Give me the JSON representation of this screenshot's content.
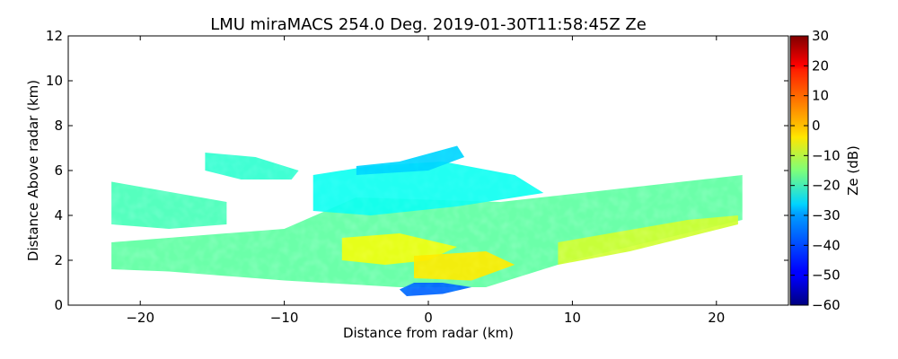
{
  "chart_data": {
    "type": "heatmap",
    "title": "LMU miraMACS 254.0 Deg. 2019-01-30T11:58:45Z  Ze",
    "xlabel": "Distance from radar (km)",
    "ylabel": "Distance Above radar  (km)",
    "xlim": [
      -25,
      25
    ],
    "ylim": [
      0,
      12
    ],
    "x_ticks": [
      -20,
      -10,
      0,
      10,
      20
    ],
    "y_ticks": [
      0,
      2,
      4,
      6,
      8,
      10,
      12
    ],
    "grid": false,
    "colorbar": {
      "label": "Ze (dB)",
      "range": [
        -60,
        30
      ],
      "ticks": [
        -60,
        -50,
        -40,
        -30,
        -20,
        -10,
        0,
        10,
        20,
        30
      ],
      "colormap": "jet"
    },
    "echo_regions": [
      {
        "polygon": [
          [
            -22,
            1.6
          ],
          [
            -22,
            2.8
          ],
          [
            -10,
            3.4
          ],
          [
            -5,
            4.8
          ],
          [
            5,
            4.6
          ],
          [
            21.8,
            5.8
          ],
          [
            21.8,
            3.8
          ],
          [
            10,
            2.0
          ],
          [
            4,
            0.8
          ],
          [
            -2,
            0.8
          ],
          [
            -10,
            1.1
          ],
          [
            -18,
            1.5
          ]
        ],
        "ze": -18
      },
      {
        "polygon": [
          [
            -22,
            3.6
          ],
          [
            -22,
            5.5
          ],
          [
            -14,
            4.6
          ],
          [
            -14,
            3.6
          ],
          [
            -18,
            3.4
          ]
        ],
        "ze": -20
      },
      {
        "polygon": [
          [
            -15.5,
            6.0
          ],
          [
            -15.5,
            6.8
          ],
          [
            -12,
            6.6
          ],
          [
            -9,
            6.0
          ],
          [
            -9.5,
            5.6
          ],
          [
            -13,
            5.6
          ]
        ],
        "ze": -22
      },
      {
        "polygon": [
          [
            -8,
            4.2
          ],
          [
            -8,
            5.8
          ],
          [
            -4,
            6.2
          ],
          [
            1,
            6.4
          ],
          [
            6,
            5.8
          ],
          [
            8,
            5.0
          ],
          [
            2,
            4.4
          ],
          [
            -4,
            4.0
          ]
        ],
        "ze": -25
      },
      {
        "polygon": [
          [
            -5,
            5.8
          ],
          [
            -5,
            6.2
          ],
          [
            -2,
            6.4
          ],
          [
            2,
            7.1
          ],
          [
            2.5,
            6.6
          ],
          [
            0,
            6.0
          ]
        ],
        "ze": -30
      },
      {
        "polygon": [
          [
            -2,
            0.7
          ],
          [
            -1.5,
            0.4
          ],
          [
            1,
            0.5
          ],
          [
            3,
            0.8
          ],
          [
            1,
            1.0
          ],
          [
            -1,
            1.0
          ]
        ],
        "ze": -40
      },
      {
        "polygon": [
          [
            -6,
            2.0
          ],
          [
            -6,
            3.0
          ],
          [
            -2,
            3.2
          ],
          [
            2,
            2.6
          ],
          [
            0,
            2.0
          ],
          [
            -3,
            1.8
          ]
        ],
        "ze": -5
      },
      {
        "polygon": [
          [
            -1,
            1.2
          ],
          [
            -1,
            2.2
          ],
          [
            4,
            2.4
          ],
          [
            6,
            1.8
          ],
          [
            3,
            1.1
          ]
        ],
        "ze": -2
      },
      {
        "polygon": [
          [
            9,
            1.8
          ],
          [
            9,
            2.8
          ],
          [
            18,
            3.8
          ],
          [
            21.5,
            4.0
          ],
          [
            21.5,
            3.6
          ],
          [
            14,
            2.4
          ]
        ],
        "ze": -8
      }
    ]
  }
}
